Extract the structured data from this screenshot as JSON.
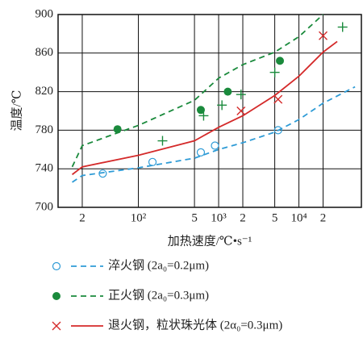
{
  "chart_data": {
    "type": "line",
    "xlabel": "加热速度/℃•s⁻¹",
    "ylabel": "温度/℃",
    "xscale": "log",
    "xlim": [
      10,
      60000
    ],
    "ylim": [
      700,
      900
    ],
    "xticks": [
      {
        "value": 20,
        "label": "2"
      },
      {
        "value": 100,
        "label": "10²"
      },
      {
        "value": 500,
        "label": "5"
      },
      {
        "value": 1000,
        "label": "10³"
      },
      {
        "value": 2000,
        "label": "2"
      },
      {
        "value": 5000,
        "label": "5"
      },
      {
        "value": 10000,
        "label": "10⁴"
      },
      {
        "value": 20000,
        "label": "2"
      }
    ],
    "yticks": [
      700,
      740,
      780,
      820,
      860,
      900
    ],
    "grid": true,
    "series": [
      {
        "name": "淬火钢 (2a₀=0.2μm)",
        "color": "#2e9bd6",
        "dash": true,
        "marker": "circle",
        "x": [
          15,
          20,
          100,
          500,
          1000,
          2000,
          5000,
          10000,
          20000,
          50000
        ],
        "values": [
          726,
          733,
          741,
          751,
          760,
          767,
          778,
          791,
          808,
          825
        ],
        "points_x": [
          36,
          150,
          600,
          900,
          5500
        ],
        "points": [
          735,
          747,
          757,
          764,
          780
        ]
      },
      {
        "name": "正火钢 (2a₀=0.3μm)",
        "color": "#1a8a3c",
        "dash": true,
        "marker": "dot",
        "x": [
          15,
          20,
          100,
          500,
          1000,
          2000,
          5000,
          10000,
          20000
        ],
        "values": [
          742,
          764,
          785,
          811,
          834,
          848,
          861,
          877,
          900
        ],
        "points_x": [
          55,
          600,
          1300,
          5800
        ],
        "points": [
          781,
          801,
          820,
          852
        ]
      },
      {
        "name": "退火钢，粒状珠光体 (2α₀=0.3μm)",
        "color": "#d42a2a",
        "dash": false,
        "marker": "x",
        "x": [
          15,
          20,
          100,
          500,
          1000,
          2000,
          5000,
          10000,
          20000,
          30000
        ],
        "values": [
          734,
          742,
          754,
          769,
          783,
          795,
          816,
          836,
          861,
          872
        ],
        "points_x": [
          1900,
          5500,
          20000
        ],
        "points": [
          800,
          812,
          878
        ]
      },
      {
        "color": "#1a8a3c",
        "marker": "plus",
        "points_x": [
          200,
          650,
          1100,
          1900,
          5000,
          35000
        ],
        "points": [
          769,
          795,
          806,
          817,
          840,
          887
        ]
      }
    ]
  }
}
